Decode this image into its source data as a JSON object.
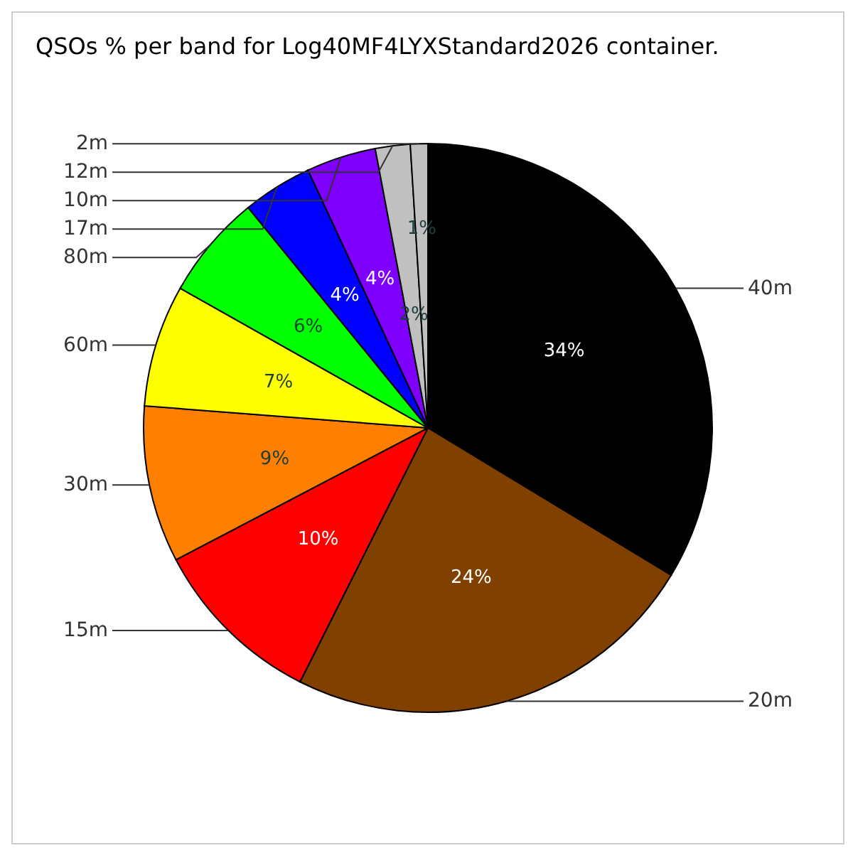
{
  "chart_data": {
    "type": "pie",
    "title": "QSOs % per band for Log40MF4LYXStandard2026 container.",
    "categories": [
      "40m",
      "20m",
      "15m",
      "30m",
      "60m",
      "80m",
      "17m",
      "10m",
      "12m",
      "2m"
    ],
    "values": [
      34,
      24,
      10,
      9,
      7,
      6,
      4,
      4,
      2,
      1
    ],
    "value_labels": [
      "34%",
      "24%",
      "10%",
      "9%",
      "7%",
      "6%",
      "4%",
      "4%",
      "2%",
      "1%"
    ],
    "colors": [
      "#000000",
      "#804000",
      "#ff0000",
      "#ff8000",
      "#ffff00",
      "#00ff00",
      "#0000ff",
      "#8000ff",
      "#c0c0c0",
      "#c0c0c0"
    ],
    "legend": false
  }
}
